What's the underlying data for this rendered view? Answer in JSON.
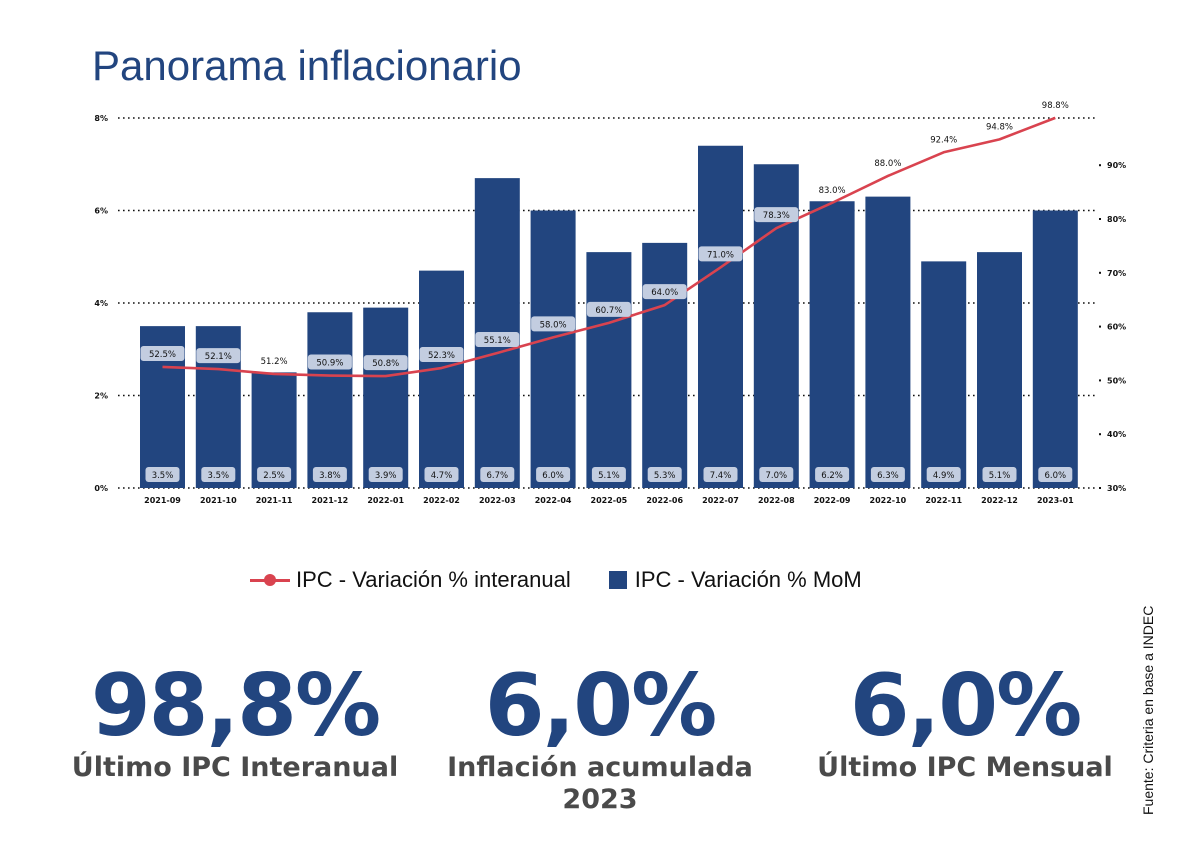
{
  "header": {
    "title": "Panorama inflacionario"
  },
  "legend": {
    "line_label": "IPC - Variación % interanual",
    "bar_label": "IPC - Variación % MoM"
  },
  "kpis": [
    {
      "value": "98,8%",
      "label": "Último IPC Interanual",
      "label2": ""
    },
    {
      "value": "6,0%",
      "label": "Inflación acumulada",
      "label2": "2023"
    },
    {
      "value": "6,0%",
      "label": "Último IPC Mensual",
      "label2": ""
    }
  ],
  "source": "Fuente: Criteria en base a INDEC",
  "colors": {
    "bar": "#22457f",
    "line": "#d9434f",
    "label_box": "#c3cde0",
    "kpi_value": "#22457f",
    "kpi_label": "#4a4a4a"
  },
  "chart_data": {
    "type": "bar",
    "title": "Panorama inflacionario",
    "categories": [
      "2021-09",
      "2021-10",
      "2021-11",
      "2021-12",
      "2022-01",
      "2022-02",
      "2022-03",
      "2022-04",
      "2022-05",
      "2022-06",
      "2022-07",
      "2022-08",
      "2022-09",
      "2022-10",
      "2022-11",
      "2022-12",
      "2023-01"
    ],
    "series": [
      {
        "name": "IPC - Variación % MoM",
        "type": "bar",
        "axis": "left",
        "values": [
          3.5,
          3.5,
          2.5,
          3.8,
          3.9,
          4.7,
          6.7,
          6.0,
          5.1,
          5.3,
          7.4,
          7.0,
          6.2,
          6.3,
          4.9,
          5.1,
          6.0
        ],
        "labels": [
          "3.5%",
          "3.5%",
          "2.5%",
          "3.8%",
          "3.9%",
          "4.7%",
          "6.7%",
          "6.0%",
          "5.1%",
          "5.3%",
          "7.4%",
          "7.0%",
          "6.2%",
          "6.3%",
          "4.9%",
          "5.1%",
          "6.0%"
        ]
      },
      {
        "name": "IPC - Variación % interanual",
        "type": "line",
        "axis": "right",
        "values": [
          52.5,
          52.1,
          51.2,
          50.9,
          50.8,
          52.3,
          55.1,
          58.0,
          60.7,
          64.0,
          71.0,
          78.3,
          83.0,
          88.0,
          92.4,
          94.8,
          98.8
        ],
        "labels": [
          "52.5%",
          "52.1%",
          "51.2%",
          "50.9%",
          "50.8%",
          "52.3%",
          "55.1%",
          "58.0%",
          "60.7%",
          "64.0%",
          "71.0%",
          "78.3%",
          "83.0%",
          "88.0%",
          "92.4%",
          "94.8%",
          "98.8%"
        ]
      }
    ],
    "left_axis": {
      "ticks": [
        "0%",
        "2%",
        "4%",
        "6%",
        "8%"
      ],
      "range": [
        0,
        8
      ]
    },
    "right_axis": {
      "ticks": [
        "30%",
        "40%",
        "50%",
        "60%",
        "70%",
        "80%",
        "90%"
      ],
      "range": [
        30,
        98.8
      ]
    },
    "grid": "dotted horizontal",
    "legend_position": "bottom"
  }
}
